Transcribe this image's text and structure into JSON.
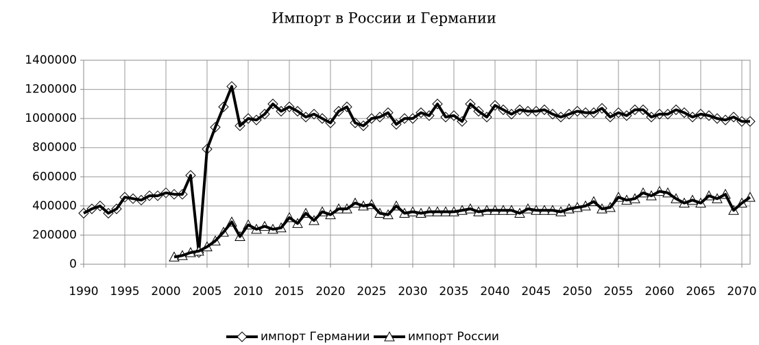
{
  "chart_data": {
    "type": "line",
    "title": "Импорт в России и Германии",
    "x": [
      1990,
      1991,
      1992,
      1993,
      1994,
      1995,
      1996,
      1997,
      1998,
      1999,
      2000,
      2001,
      2002,
      2003,
      2004,
      2005,
      2006,
      2007,
      2008,
      2009,
      2010,
      2011,
      2012,
      2013,
      2014,
      2015,
      2016,
      2017,
      2018,
      2019,
      2020,
      2021,
      2022,
      2023,
      2024,
      2025,
      2026,
      2027,
      2028,
      2029,
      2030,
      2031,
      2032,
      2033,
      2034,
      2035,
      2036,
      2037,
      2038,
      2039,
      2040,
      2041,
      2042,
      2043,
      2044,
      2045,
      2046,
      2047,
      2048,
      2049,
      2050,
      2051,
      2052,
      2053,
      2054,
      2055,
      2056,
      2057,
      2058,
      2059,
      2060,
      2061,
      2062,
      2063,
      2064,
      2065,
      2066,
      2067,
      2068,
      2069,
      2070,
      2071
    ],
    "series": [
      {
        "name": "импорт Германии",
        "color": "#000000",
        "marker": "diamond",
        "values": [
          350000,
          380000,
          400000,
          350000,
          380000,
          460000,
          450000,
          440000,
          470000,
          470000,
          490000,
          480000,
          480000,
          610000,
          80000,
          790000,
          940000,
          1080000,
          1220000,
          950000,
          1000000,
          990000,
          1030000,
          1100000,
          1050000,
          1080000,
          1050000,
          1010000,
          1030000,
          1000000,
          970000,
          1050000,
          1080000,
          970000,
          950000,
          1000000,
          1010000,
          1040000,
          960000,
          1000000,
          1000000,
          1040000,
          1020000,
          1100000,
          1010000,
          1020000,
          980000,
          1100000,
          1050000,
          1010000,
          1090000,
          1060000,
          1030000,
          1060000,
          1050000,
          1050000,
          1060000,
          1030000,
          1010000,
          1030000,
          1050000,
          1040000,
          1040000,
          1070000,
          1010000,
          1040000,
          1020000,
          1060000,
          1060000,
          1010000,
          1030000,
          1030000,
          1060000,
          1040000,
          1010000,
          1030000,
          1020000,
          1000000,
          990000,
          1010000,
          980000,
          980000
        ]
      },
      {
        "name": "импорт России",
        "color": "#000000",
        "marker": "triangle",
        "values": [
          null,
          null,
          null,
          null,
          null,
          null,
          null,
          null,
          null,
          null,
          null,
          50000,
          60000,
          80000,
          90000,
          120000,
          160000,
          220000,
          290000,
          190000,
          270000,
          240000,
          260000,
          240000,
          250000,
          320000,
          280000,
          350000,
          300000,
          360000,
          340000,
          380000,
          380000,
          420000,
          400000,
          410000,
          350000,
          340000,
          400000,
          350000,
          360000,
          350000,
          360000,
          360000,
          360000,
          360000,
          370000,
          380000,
          360000,
          370000,
          370000,
          370000,
          370000,
          350000,
          380000,
          370000,
          370000,
          370000,
          360000,
          380000,
          390000,
          400000,
          430000,
          380000,
          390000,
          460000,
          440000,
          450000,
          490000,
          470000,
          500000,
          490000,
          450000,
          420000,
          440000,
          420000,
          470000,
          450000,
          480000,
          370000,
          420000,
          460000
        ]
      }
    ],
    "xlim": [
      1990,
      2071
    ],
    "xticks": [
      1990,
      1995,
      2000,
      2005,
      2010,
      2015,
      2020,
      2025,
      2030,
      2035,
      2040,
      2045,
      2050,
      2055,
      2060,
      2065,
      2070
    ],
    "ylim": [
      0,
      1400000
    ],
    "yticks": [
      0,
      200000,
      400000,
      600000,
      800000,
      1000000,
      1200000,
      1400000
    ],
    "grid": true,
    "legend": "bottom"
  }
}
